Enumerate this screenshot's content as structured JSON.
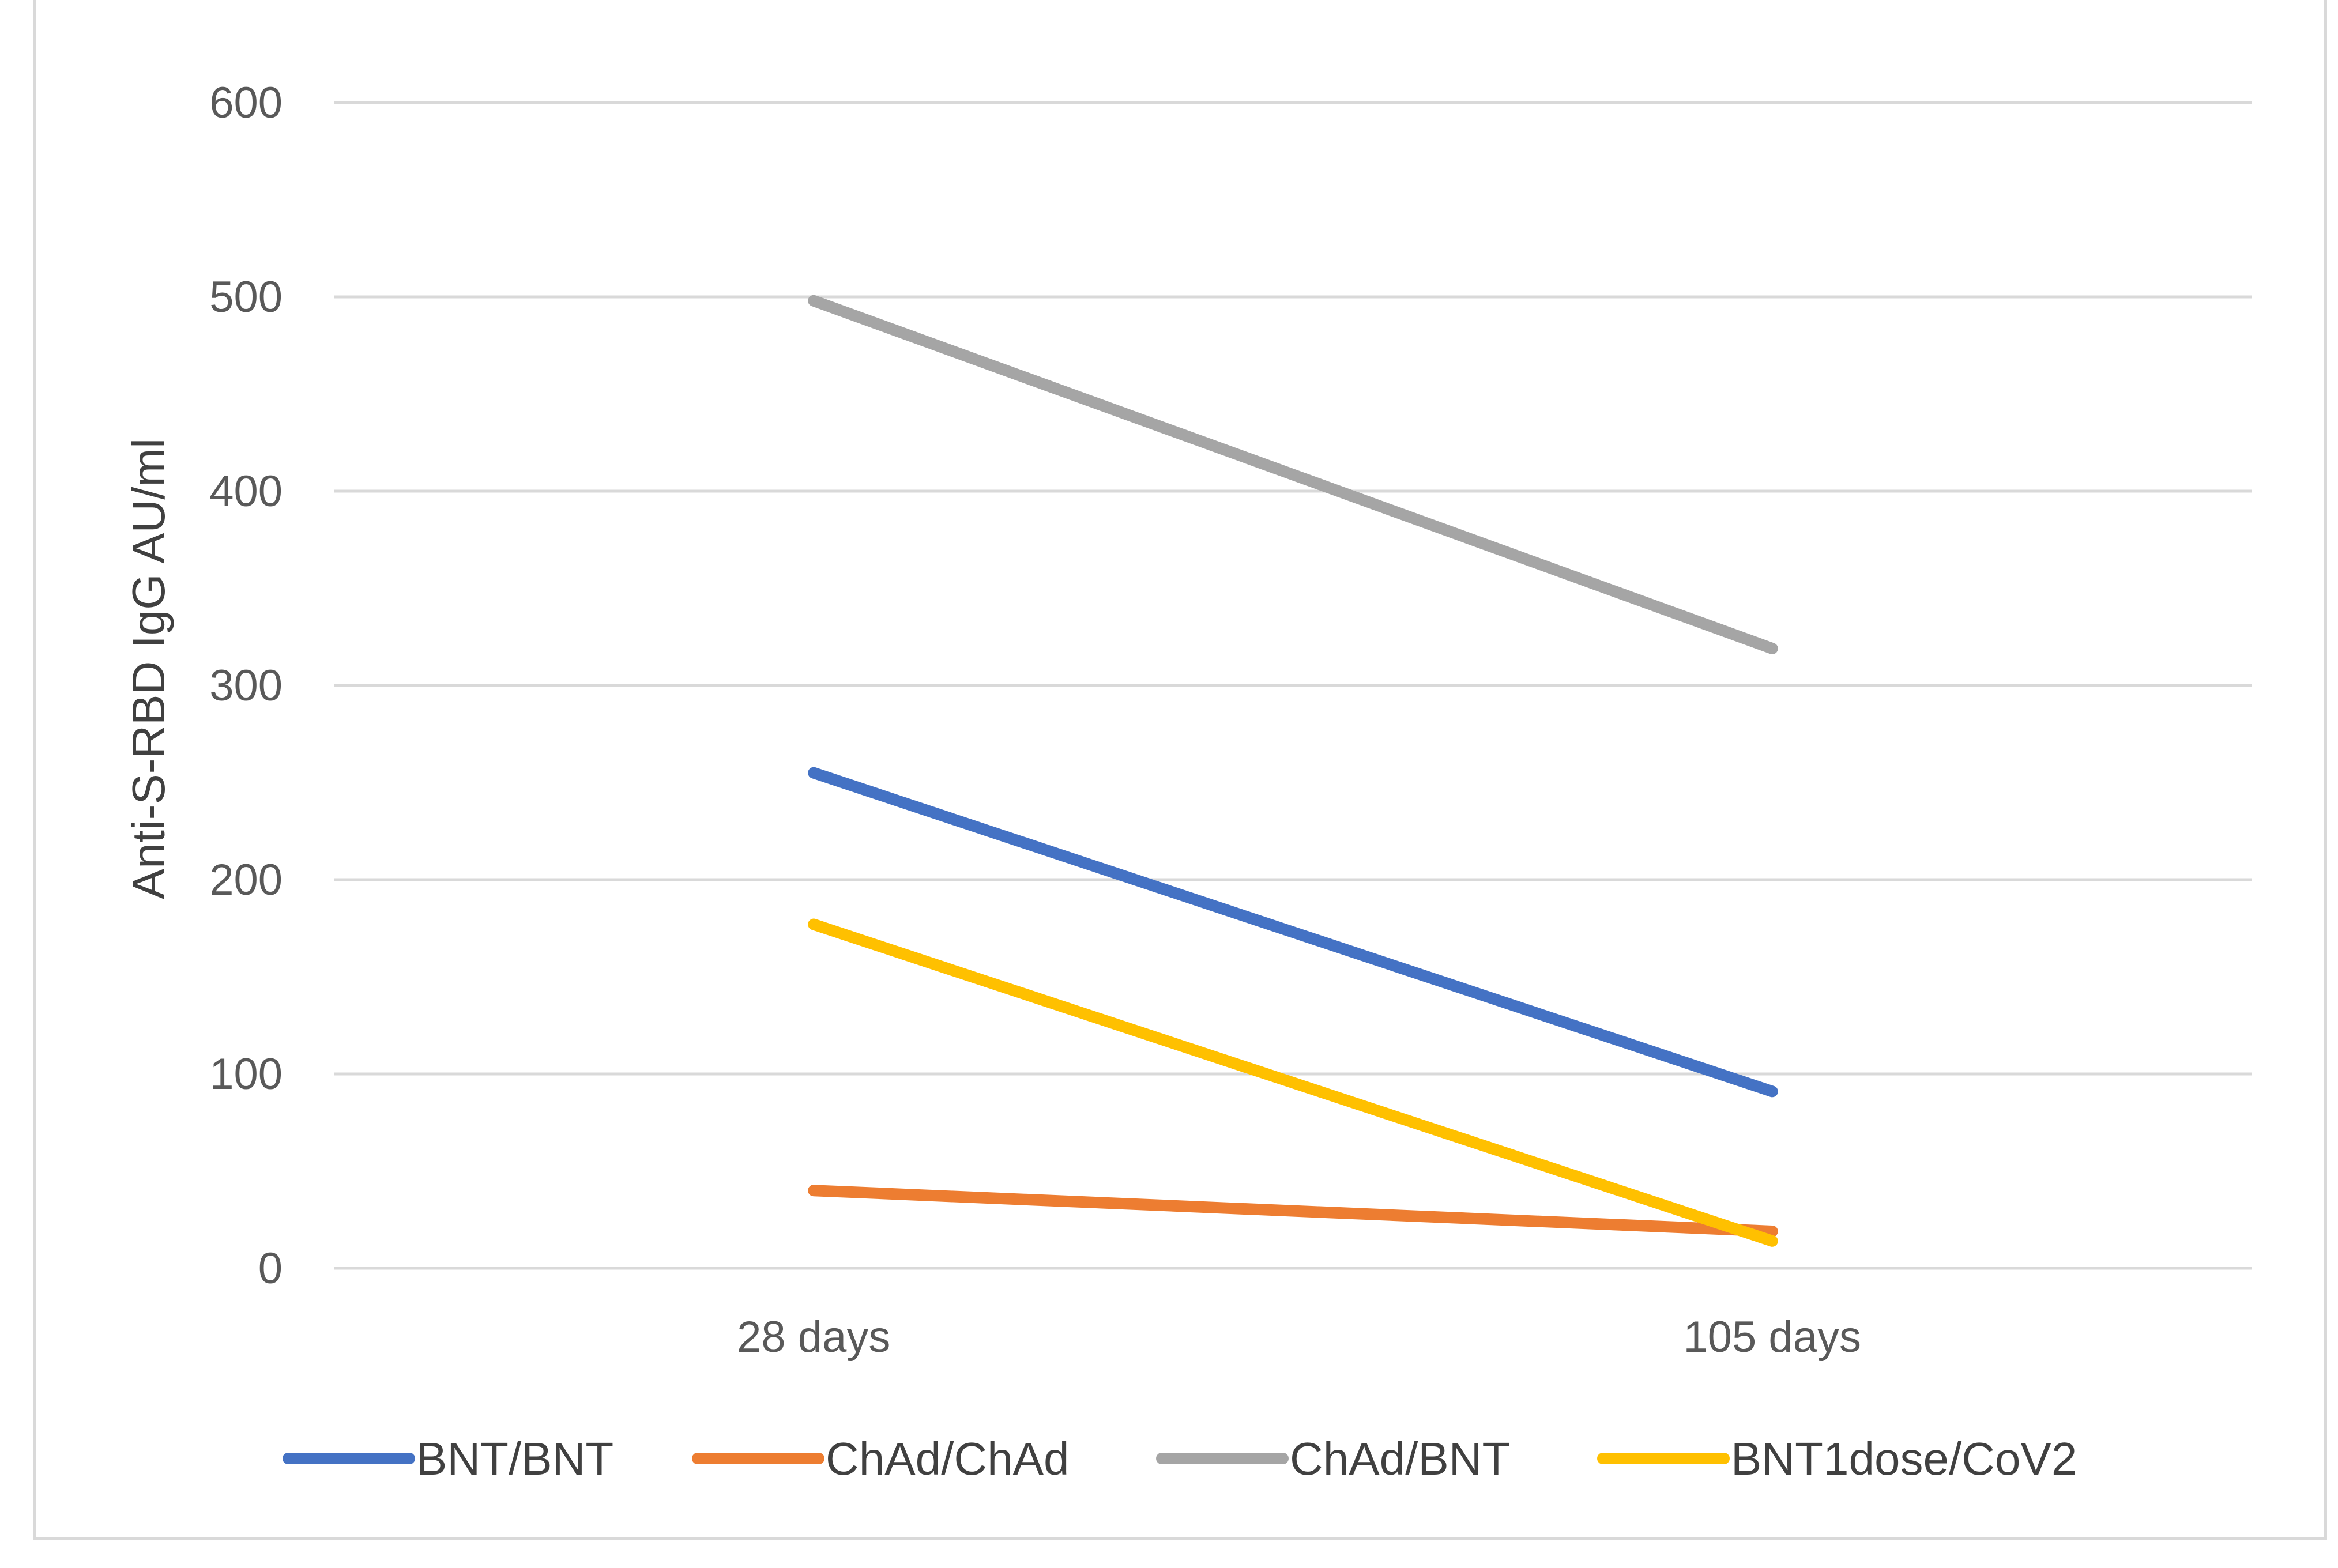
{
  "chart_data": {
    "type": "line",
    "title": "",
    "xlabel": "",
    "ylabel": "Anti-S-RBD IgG AU/ml",
    "categories": [
      "28 days",
      "105 days"
    ],
    "ylim": [
      0,
      600
    ],
    "yticks": [
      "0",
      "100",
      "200",
      "300",
      "400",
      "500",
      "600"
    ],
    "grid": true,
    "legend_position": "bottom",
    "series": [
      {
        "name": "BNT/BNT",
        "values": [
          255,
          91
        ],
        "color": "#4472c4"
      },
      {
        "name": "ChAd/ChAd",
        "values": [
          40,
          19
        ],
        "color": "#ed7d31"
      },
      {
        "name": "ChAd/BNT",
        "values": [
          498,
          319
        ],
        "color": "#a5a5a5"
      },
      {
        "name": "BNT1dose/CoV2",
        "values": [
          177,
          14
        ],
        "color": "#ffc000"
      }
    ]
  }
}
